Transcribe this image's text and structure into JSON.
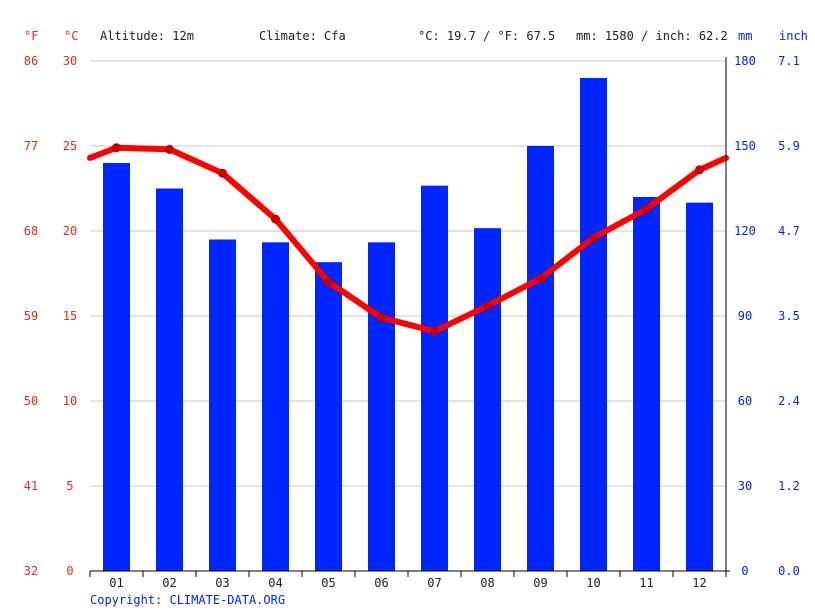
{
  "header": {
    "unit_f": "°F",
    "unit_c": "°C",
    "altitude": "Altitude: 12m",
    "climate": "Climate: Cfa",
    "temp_summary": "°C: 19.7 / °F: 67.5",
    "precip_summary": "mm: 1580 / inch: 62.2",
    "unit_mm": "mm",
    "unit_inch": "inch"
  },
  "footer": {
    "copyright": "Copyright: CLIMATE-DATA.ORG"
  },
  "chart_data": {
    "type": "bar",
    "categories": [
      "01",
      "02",
      "03",
      "04",
      "05",
      "06",
      "07",
      "08",
      "09",
      "10",
      "11",
      "12"
    ],
    "series": [
      {
        "kind": "bar",
        "unit": "mm",
        "color": "#0026ff",
        "values": [
          144,
          135,
          117,
          116,
          109,
          116,
          136,
          121,
          150,
          174,
          132,
          130
        ]
      },
      {
        "kind": "line",
        "unit": "°C",
        "color": "#ff0000",
        "values": [
          24.9,
          24.8,
          23.4,
          20.7,
          17.0,
          14.9,
          14.1,
          15.6,
          17.2,
          19.6,
          21.3,
          23.6
        ],
        "edge_start": 24.3,
        "edge_end": 24.3
      }
    ],
    "axes": {
      "celsius": {
        "ticks": [
          "0",
          "5",
          "10",
          "15",
          "20",
          "25",
          "30"
        ],
        "range": [
          0,
          30
        ]
      },
      "fahrenheit": {
        "ticks": [
          "32",
          "41",
          "50",
          "59",
          "68",
          "77",
          "86"
        ]
      },
      "mm": {
        "ticks": [
          "0",
          "30",
          "60",
          "90",
          "120",
          "150",
          "180"
        ],
        "range": [
          0,
          180
        ]
      },
      "inch": {
        "ticks": [
          "0.0",
          "1.2",
          "2.4",
          "3.5",
          "4.7",
          "5.9",
          "7.1"
        ]
      }
    },
    "grid": true
  }
}
